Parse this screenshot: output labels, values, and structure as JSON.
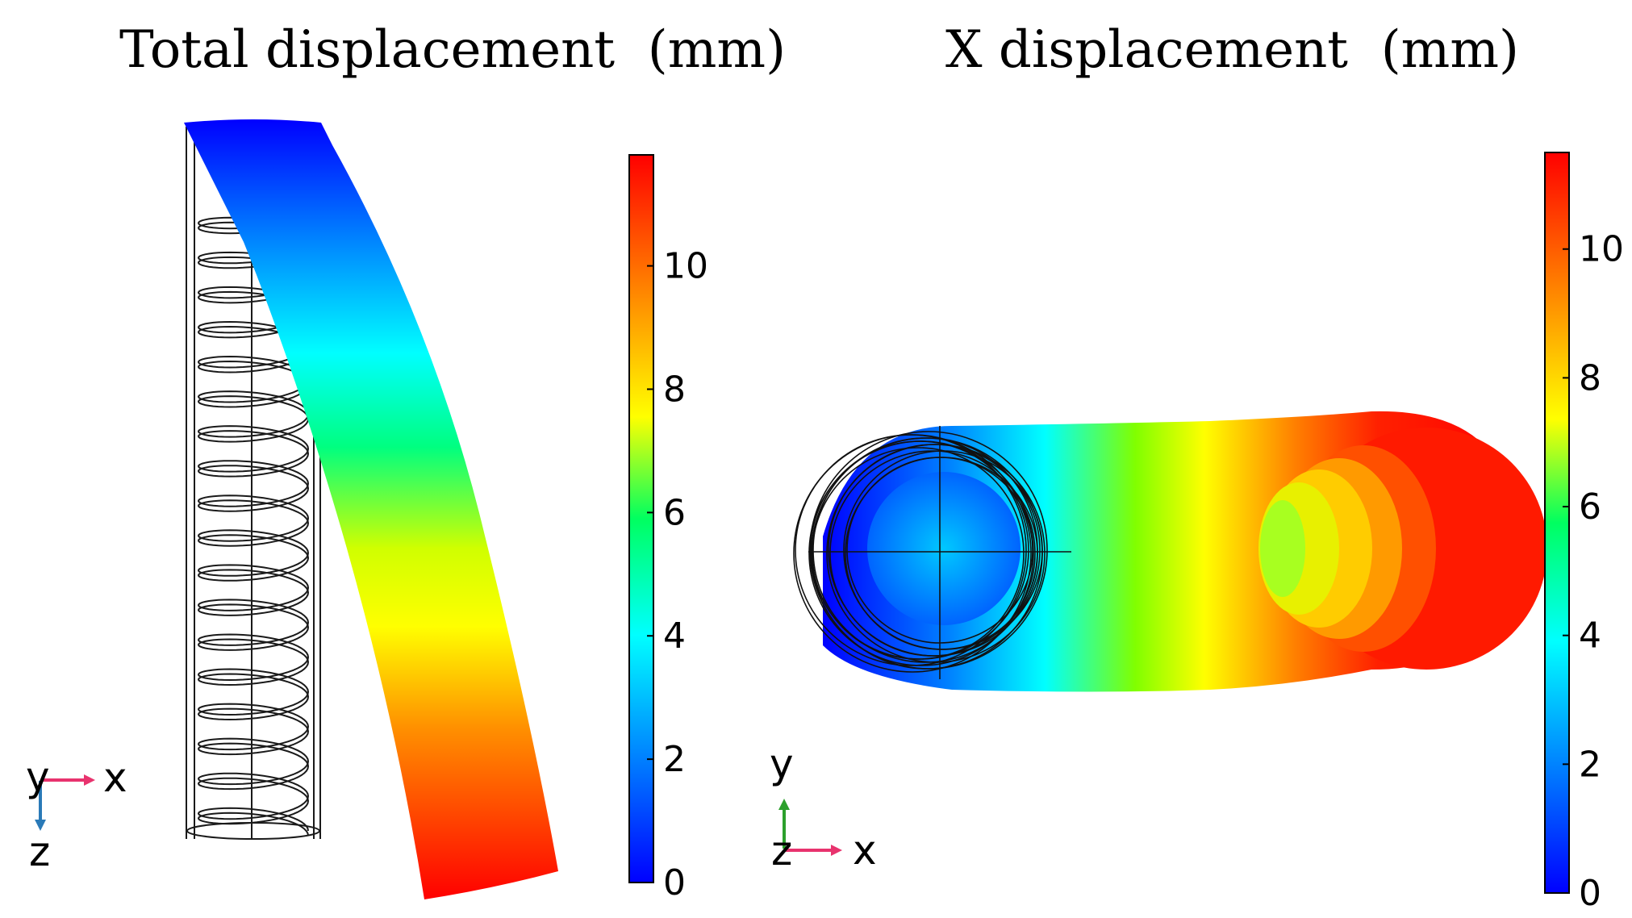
{
  "panels": [
    {
      "title": "Total displacement  (mm)",
      "colorbar": {
        "min": 0,
        "max": 11.8,
        "ticks": [
          "0",
          "2",
          "4",
          "6",
          "8",
          "10"
        ]
      },
      "triad": {
        "horizontal": "x",
        "vertical": "z",
        "out_of_plane": "y"
      }
    },
    {
      "title": "X displacement  (mm)",
      "colorbar": {
        "min": 0,
        "max": 11.5,
        "ticks": [
          "0",
          "2",
          "4",
          "6",
          "8",
          "10"
        ]
      },
      "triad": {
        "horizontal": "x",
        "vertical": "y",
        "out_of_plane": "z"
      }
    }
  ],
  "colormap": [
    "#0000ff",
    "#0080ff",
    "#00ffff",
    "#00ff80",
    "#80ff00",
    "#ffff00",
    "#ff8000",
    "#ff0000"
  ],
  "colors": {
    "x_axis": "#e8336e",
    "z_axis": "#2a7ab8",
    "y_axis": "#2ca02c",
    "wire": "#1a1a1a"
  }
}
